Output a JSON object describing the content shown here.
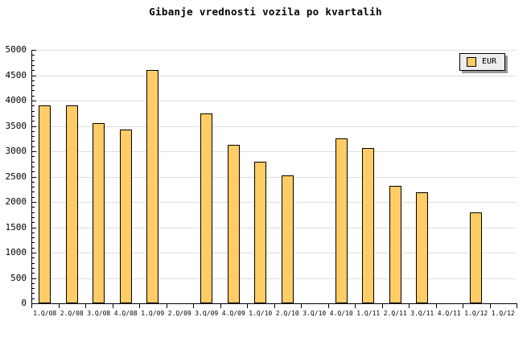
{
  "chart": {
    "title": "Gibanje vrednosti vozila po kvartalih",
    "legend": {
      "label": "EUR"
    }
  },
  "chart_data": {
    "type": "bar",
    "title": "Gibanje vrednosti vozila po kvartalih",
    "categories": [
      "1.Q/08",
      "2.Q/08",
      "3.Q/08",
      "4.Q/08",
      "1.Q/09",
      "2.Q/09",
      "3.Q/09",
      "4.Q/09",
      "1.Q/10",
      "2.Q/10",
      "3.Q/10",
      "4.Q/10",
      "1.Q/11",
      "2.Q/11",
      "3.Q/11",
      "4.Q/11",
      "1.Q/12",
      "1.Q/12"
    ],
    "series": [
      {
        "name": "EUR",
        "values": [
          3900,
          3900,
          3560,
          3430,
          4610,
          0,
          3750,
          3130,
          2790,
          2530,
          0,
          3250,
          3060,
          2320,
          2190,
          0,
          1790,
          0
        ]
      }
    ],
    "xlabel": "",
    "ylabel": "",
    "ylim": [
      0,
      5000
    ],
    "ytick_step": 500,
    "ytick_labels": [
      "0",
      "500",
      "1000",
      "1500",
      "2000",
      "2500",
      "3000",
      "3500",
      "4000",
      "4500",
      "5000"
    ],
    "minor_tick_step": 100,
    "grid": "horizontal-only",
    "legend_position": "top-right",
    "bar_color": "#ffcc66",
    "bar_border_color": "#000000",
    "grid_color": "#dedede",
    "axis_color": "#000000",
    "background_color": "#ffffff"
  }
}
